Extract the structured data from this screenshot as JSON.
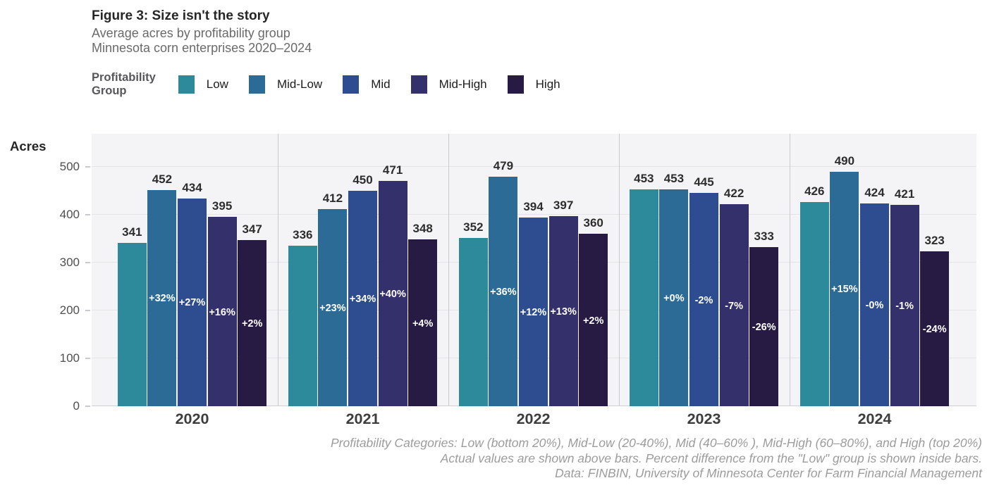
{
  "header": {
    "title": "Figure 3: Size isn't the story",
    "subtitle1": "Average acres by profitability group",
    "subtitle2": "Minnesota corn enterprises 2020–2024"
  },
  "legend": {
    "title_line1": "Profitability",
    "title_line2": "Group",
    "items": [
      {
        "label": "Low",
        "color": "#2d8a9a"
      },
      {
        "label": "Mid-Low",
        "color": "#2c6b95"
      },
      {
        "label": "Mid",
        "color": "#2e4d90"
      },
      {
        "label": "Mid-High",
        "color": "#33306c"
      },
      {
        "label": "High",
        "color": "#281b43"
      }
    ]
  },
  "axes": {
    "y_label": "Acres",
    "y_ticks": [
      0,
      100,
      200,
      300,
      400,
      500
    ],
    "x_labels": [
      "2020",
      "2021",
      "2022",
      "2023",
      "2024"
    ]
  },
  "chart_data": {
    "type": "bar",
    "title": "Figure 3: Size isn't the story",
    "subtitle": "Average acres by profitability group, Minnesota corn enterprises 2020–2024",
    "ylabel": "Acres",
    "ylim": [
      0,
      569
    ],
    "yticks": [
      0,
      100,
      200,
      300,
      400,
      500
    ],
    "grid": true,
    "legend_position": "top",
    "categories": [
      "2020",
      "2021",
      "2022",
      "2023",
      "2024"
    ],
    "series": [
      {
        "name": "Low",
        "color": "#2d8a9a",
        "values": [
          341,
          336,
          352,
          453,
          426
        ],
        "pct": [
          "",
          "",
          "",
          "",
          ""
        ]
      },
      {
        "name": "Mid-Low",
        "color": "#2c6b95",
        "values": [
          452,
          412,
          479,
          453,
          490
        ],
        "pct": [
          "+32%",
          "+23%",
          "+36%",
          "+0%",
          "+15%"
        ]
      },
      {
        "name": "Mid",
        "color": "#2e4d90",
        "values": [
          434,
          450,
          394,
          445,
          424
        ],
        "pct": [
          "+27%",
          "+34%",
          "+12%",
          "-2%",
          "-0%"
        ]
      },
      {
        "name": "Mid-High",
        "color": "#33306c",
        "values": [
          395,
          471,
          397,
          422,
          421
        ],
        "pct": [
          "+16%",
          "+40%",
          "+13%",
          "-7%",
          "-1%"
        ]
      },
      {
        "name": "High",
        "color": "#281b43",
        "values": [
          347,
          348,
          360,
          333,
          323
        ],
        "pct": [
          "+2%",
          "+4%",
          "+2%",
          "-26%",
          "-24%"
        ]
      }
    ]
  },
  "footnotes": {
    "line1": "Profitability Categories: Low (bottom 20%), Mid-Low (20-40%), Mid (40–60% ), Mid-High (60–80%), and High (top 20%)",
    "line2": "Actual values are shown above bars. Percent difference from the \"Low\" group is shown inside bars.",
    "line3": "Data: FINBIN, University of Minnesota Center for Farm Financial Management"
  }
}
